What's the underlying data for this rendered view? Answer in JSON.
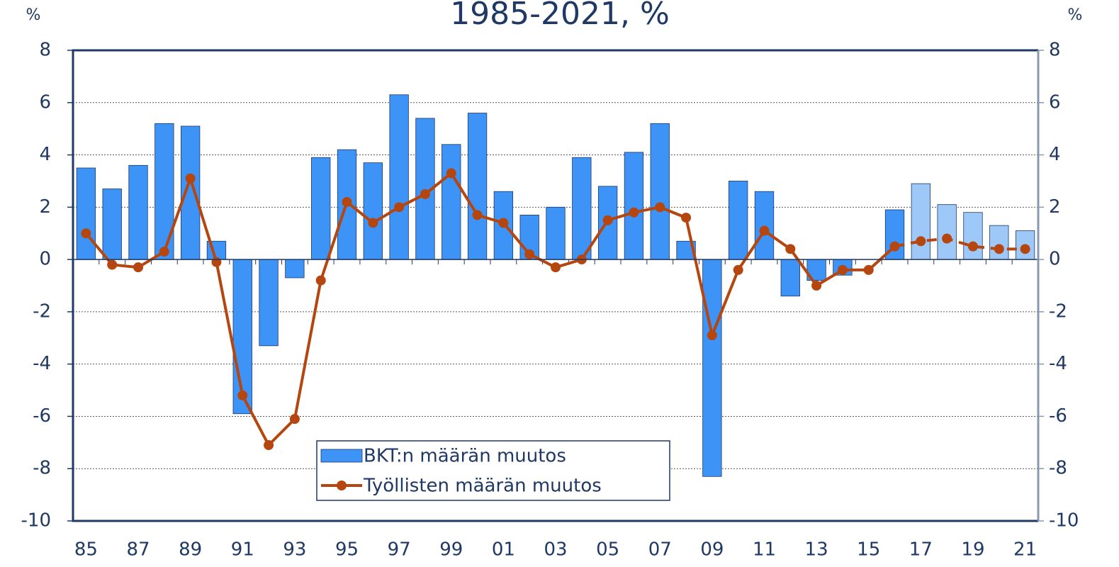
{
  "chart_data": {
    "type": "bar_line",
    "title": "1985-2021, %",
    "y_label": "%",
    "y2_label": "%",
    "categories": [
      "85",
      null,
      "87",
      null,
      "89",
      null,
      "91",
      null,
      "93",
      null,
      "95",
      null,
      "97",
      null,
      "99",
      null,
      "01",
      null,
      "03",
      null,
      "05",
      null,
      "07",
      null,
      "09",
      null,
      "11",
      null,
      "13",
      null,
      "15",
      null,
      "17",
      null,
      "19",
      null,
      "21"
    ],
    "series": [
      {
        "name": "BKT:n määrän muutos",
        "type": "bar",
        "color": "#3d94f6",
        "colors": [
          "#3d94f6",
          "#3d94f6",
          "#3d94f6",
          "#3d94f6",
          "#3d94f6",
          "#3d94f6",
          "#3d94f6",
          "#3d94f6",
          "#3d94f6",
          "#3d94f6",
          "#3d94f6",
          "#3d94f6",
          "#3d94f6",
          "#3d94f6",
          "#3d94f6",
          "#3d94f6",
          "#3d94f6",
          "#3d94f6",
          "#3d94f6",
          "#3d94f6",
          "#3d94f6",
          "#3d94f6",
          "#3d94f6",
          "#3d94f6",
          "#3d94f6",
          "#3d94f6",
          "#3d94f6",
          "#3d94f6",
          "#3d94f6",
          "#3d94f6",
          "#3d94f6",
          "#3d94f6",
          "#9dc8f7",
          "#9dc8f7",
          "#9dc8f7",
          "#9dc8f7",
          "#9dc8f7"
        ],
        "values": [
          3.5,
          2.7,
          3.6,
          5.2,
          5.1,
          0.7,
          -5.9,
          -3.3,
          -0.7,
          3.9,
          4.2,
          3.7,
          6.3,
          5.4,
          4.4,
          5.6,
          2.6,
          1.7,
          2.0,
          3.9,
          2.8,
          4.1,
          5.2,
          0.7,
          -8.3,
          3.0,
          2.6,
          -1.4,
          -0.8,
          -0.6,
          0,
          1.9,
          2.9,
          2.1,
          1.8,
          1.3,
          1.1
        ]
      },
      {
        "name": "Työllisten määrän muutos",
        "type": "line",
        "color": "#b5460f",
        "dashed_from": 31,
        "values": [
          1.0,
          -0.2,
          -0.3,
          0.3,
          3.1,
          -0.1,
          -5.2,
          -7.1,
          -6.1,
          -0.8,
          2.2,
          1.4,
          2.0,
          2.5,
          3.3,
          1.7,
          1.4,
          0.2,
          -0.3,
          0.0,
          1.5,
          1.8,
          2.0,
          1.6,
          -2.9,
          -0.4,
          1.1,
          0.4,
          -1.0,
          -0.4,
          -0.4,
          0.5,
          0.7,
          0.8,
          0.5,
          0.4,
          0.4
        ]
      }
    ],
    "ylim": [
      -10,
      8
    ],
    "yticks": [
      -10,
      -8,
      -6,
      -4,
      -2,
      0,
      2,
      4,
      6,
      8
    ],
    "y2lim": [
      -10,
      8
    ],
    "y2ticks": [
      -10,
      -8,
      -6,
      -4,
      -2,
      0,
      2,
      4,
      6,
      8
    ],
    "grid": true
  }
}
